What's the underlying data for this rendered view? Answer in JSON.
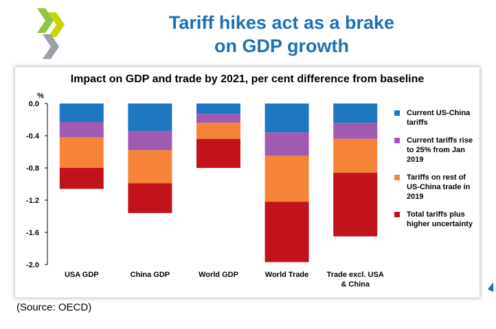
{
  "header": {
    "title_line1": "Tariff hikes act as a brake",
    "title_line2": "on GDP growth"
  },
  "logo": {
    "icon": "oecd-chevron-logo-icon",
    "colors": [
      "#8dc63f",
      "#c8d300",
      "#9aa0a6"
    ]
  },
  "source": "(Source: OECD)",
  "chart_data": {
    "type": "bar",
    "stacked": true,
    "title": "Impact on GDP and trade by 2021, per cent difference from baseline",
    "ylabel": "%",
    "ylim": [
      -2.0,
      0.0
    ],
    "yticks": [
      "0.0",
      "-0.4",
      "-0.8",
      "-1.2",
      "-1.6",
      "-2.0"
    ],
    "ytick_values": [
      0.0,
      -0.4,
      -0.8,
      -1.2,
      -1.6,
      -2.0
    ],
    "grid": false,
    "legend_position": "right",
    "categories": [
      "USA GDP",
      "China GDP",
      "World GDP",
      "World Trade",
      "Trade excl. USA & China"
    ],
    "series": [
      {
        "name": "Current US-China tariffs",
        "color": "#1f77c2",
        "values": [
          -0.23,
          -0.34,
          -0.13,
          -0.36,
          -0.24
        ]
      },
      {
        "name": "Current tariffs rise to 25% from Jan 2019",
        "color": "#a05bb0",
        "values": [
          -0.19,
          -0.24,
          -0.11,
          -0.29,
          -0.2
        ]
      },
      {
        "name": "Tariffs on rest of US-China trade in 2019",
        "color": "#f5833a",
        "values": [
          -0.38,
          -0.41,
          -0.2,
          -0.57,
          -0.42
        ]
      },
      {
        "name": "Total tariffs plus higher uncertainty",
        "color": "#c2121c",
        "values": [
          -0.26,
          -0.37,
          -0.36,
          -0.75,
          -0.79
        ]
      }
    ]
  }
}
